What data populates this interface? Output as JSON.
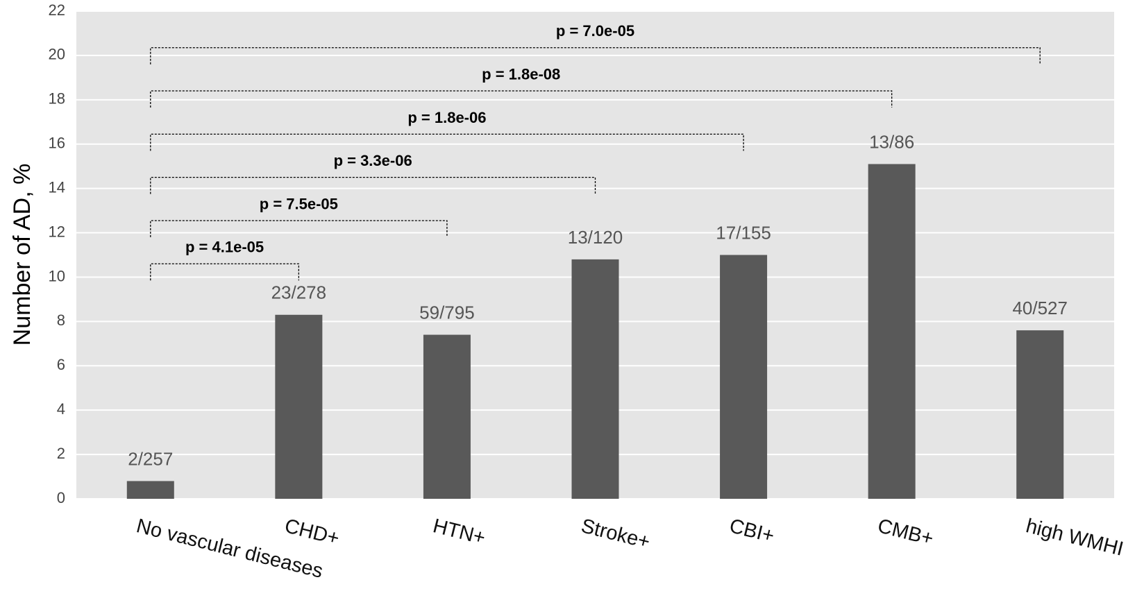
{
  "chart_data": {
    "type": "bar",
    "y_label": "Number of AD, %",
    "categories": [
      "No vascular diseases",
      "CHD+",
      "HTN+",
      "Stroke+",
      "CBI+",
      "CMB+",
      "high WMHI"
    ],
    "values": [
      0.8,
      8.3,
      7.4,
      10.8,
      11.0,
      15.1,
      7.6
    ],
    "bar_labels": [
      "2/257",
      "23/278",
      "59/795",
      "13/120",
      "17/155",
      "13/86",
      "40/527"
    ],
    "significance": [
      "p = 4.1e-05",
      "p = 7.5e-05",
      "p = 3.3e-06",
      "p = 1.8e-06",
      "p = 1.8e-08",
      "p = 7.0e-05"
    ],
    "color": "#595959",
    "ylim": [
      0,
      22
    ],
    "yticks": [
      0,
      2,
      4,
      6,
      8,
      10,
      12,
      14,
      16,
      18,
      20,
      22
    ],
    "grid": true
  }
}
